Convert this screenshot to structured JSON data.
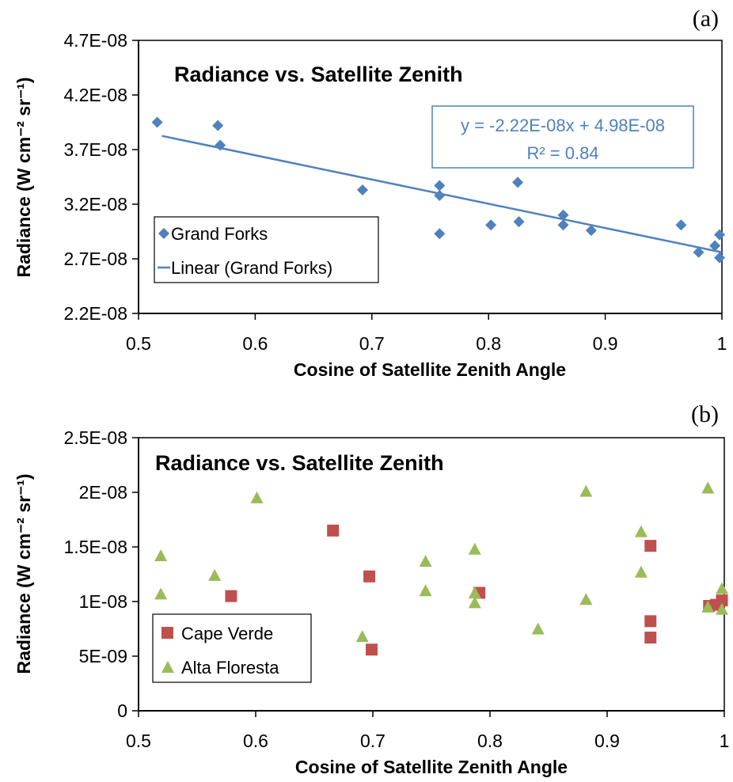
{
  "colors": {
    "grand_forks": "#4f81bd",
    "cape_verde": "#c0504d",
    "alta_floresta": "#9bbb59",
    "trendline": "#4f81bd",
    "axis": "#000000",
    "frame": "#000000"
  },
  "chart_data": [
    {
      "panel_label": "(a)",
      "type": "scatter",
      "title": "Radiance vs. Satellite Zenith",
      "xlabel": "Cosine of Satellite Zenith Angle",
      "ylabel": "Radiance (W cm⁻² sr⁻¹)",
      "xlim": [
        0.5,
        1
      ],
      "ylim": [
        2.2e-08,
        4.7e-08
      ],
      "grid": false,
      "legend_position": "left",
      "x_ticks": [
        "0.5",
        "0.6",
        "0.7",
        "0.8",
        "0.9",
        "1"
      ],
      "y_ticks": [
        "2.2E-08",
        "2.7E-08",
        "3.2E-08",
        "3.7E-08",
        "4.2E-08",
        "4.7E-08"
      ],
      "series": [
        {
          "name": "Grand Forks",
          "marker": "diamond",
          "x": [
            0.516,
            0.568,
            0.57,
            0.692,
            0.758,
            0.758,
            0.758,
            0.802,
            0.825,
            0.826,
            0.864,
            0.864,
            0.888,
            0.965,
            0.98,
            0.994,
            0.998,
            0.998
          ],
          "y": [
            3.95e-08,
            3.92e-08,
            3.74e-08,
            3.33e-08,
            3.37e-08,
            3.28e-08,
            2.93e-08,
            3.01e-08,
            3.4e-08,
            3.04e-08,
            3.1e-08,
            3.01e-08,
            2.96e-08,
            3.01e-08,
            2.76e-08,
            2.82e-08,
            2.92e-08,
            2.71e-08
          ]
        }
      ],
      "trendline": {
        "name": "Linear (Grand Forks)",
        "slope": -2.22e-08,
        "intercept": 4.98e-08,
        "x_range": [
          0.52,
          1.0
        ],
        "equation": "y = -2.22E-08x + 4.98E-08",
        "r2_text": "R² = 0.84"
      }
    },
    {
      "panel_label": "(b)",
      "type": "scatter",
      "title": "Radiance vs. Satellite Zenith",
      "xlabel": "Cosine of Satellite Zenith Angle",
      "ylabel": "Radiance (W cm⁻² sr⁻¹)",
      "xlim": [
        0.5,
        1
      ],
      "ylim": [
        0,
        2.5e-08
      ],
      "grid": false,
      "legend_position": "bottom-left",
      "x_ticks": [
        "0.5",
        "0.6",
        "0.7",
        "0.8",
        "0.9",
        "1"
      ],
      "y_ticks": [
        "0",
        "5E-09",
        "1E-08",
        "1.5E-08",
        "2E-08",
        "2.5E-08"
      ],
      "series": [
        {
          "name": "Cape Verde",
          "marker": "square",
          "x": [
            0.579,
            0.666,
            0.697,
            0.699,
            0.791,
            0.937,
            0.937,
            0.937,
            0.987,
            0.993,
            0.998
          ],
          "y": [
            1.05e-08,
            1.65e-08,
            1.23e-08,
            5.6e-09,
            1.08e-08,
            1.51e-08,
            8.2e-09,
            6.7e-09,
            9.6e-09,
            9.7e-09,
            1.01e-08
          ]
        },
        {
          "name": "Alta Floresta",
          "marker": "triangle",
          "x": [
            0.519,
            0.519,
            0.565,
            0.601,
            0.691,
            0.745,
            0.745,
            0.787,
            0.787,
            0.787,
            0.841,
            0.882,
            0.882,
            0.929,
            0.929,
            0.986,
            0.986,
            0.998,
            0.998
          ],
          "y": [
            1.42e-08,
            1.07e-08,
            1.24e-08,
            1.95e-08,
            6.8e-09,
            1.37e-08,
            1.1e-08,
            1.48e-08,
            1.08e-08,
            9.9e-09,
            7.5e-09,
            2.01e-08,
            1.02e-08,
            1.64e-08,
            1.27e-08,
            2.04e-08,
            9.5e-09,
            1.12e-08,
            9.3e-09
          ]
        }
      ]
    }
  ]
}
